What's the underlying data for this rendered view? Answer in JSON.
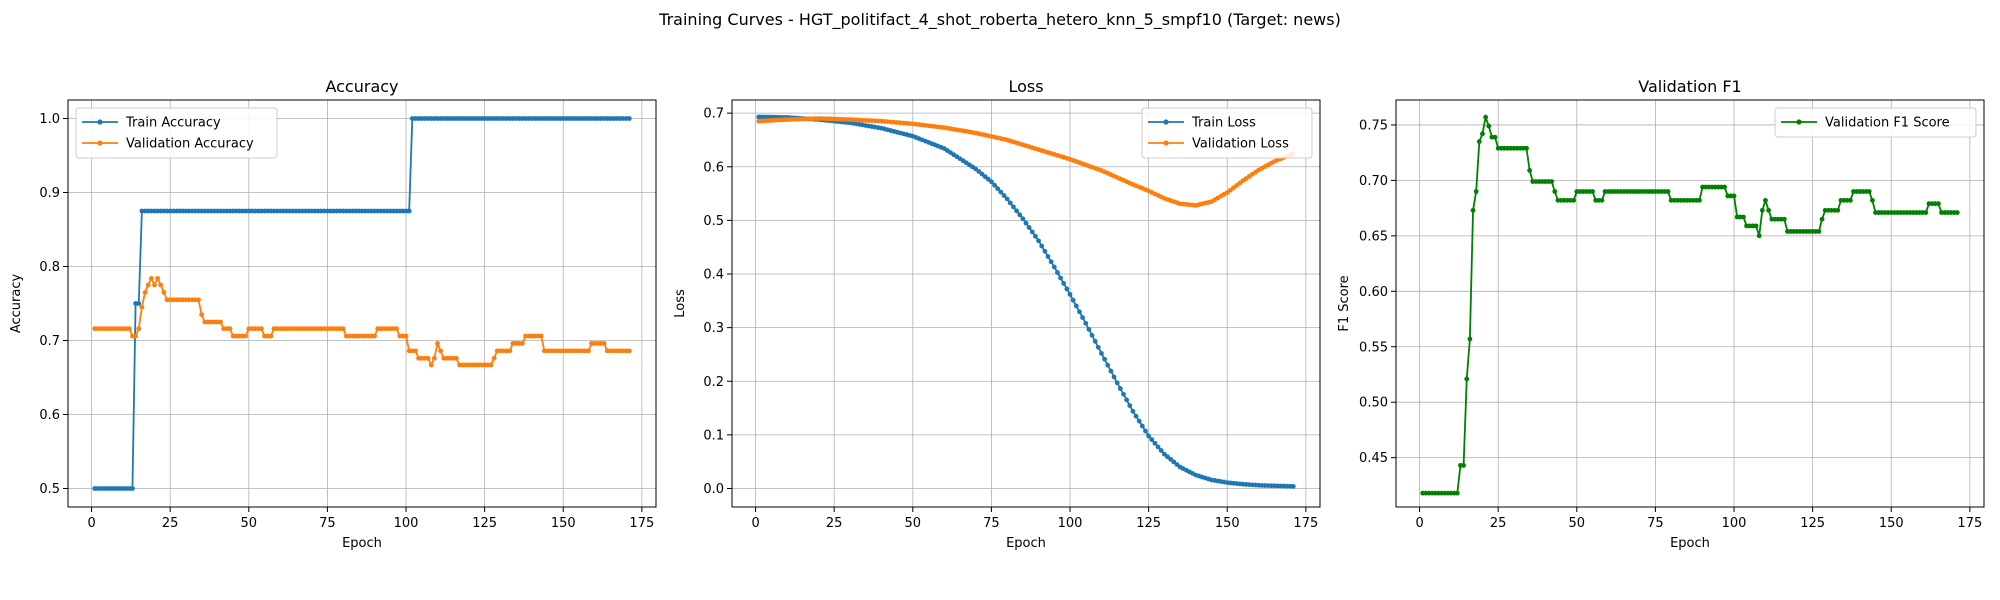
{
  "figure": {
    "title": "Training Curves - HGT_politifact_4_shot_roberta_hetero_knn_5_smpf10 (Target: news)"
  },
  "colors": {
    "blue": "#1f77b4",
    "orange": "#ff7f0e",
    "green": "#008000",
    "grid": "#b0b0b0"
  },
  "chart_data": [
    {
      "type": "line",
      "title": "Accuracy",
      "xlabel": "Epoch",
      "ylabel": "Accuracy",
      "xlim": [
        -7.5,
        179.5
      ],
      "ylim": [
        0.475,
        1.025
      ],
      "xticks": [
        0,
        25,
        50,
        75,
        100,
        125,
        150,
        175
      ],
      "yticks": [
        0.5,
        0.6,
        0.7,
        0.8,
        0.9,
        1.0
      ],
      "ytick_decimals": 1,
      "grid": true,
      "legend": "upper left",
      "series": [
        {
          "name": "Train Accuracy",
          "color": "#1f77b4",
          "points": [
            [
              1,
              0.5
            ],
            [
              13,
              0.5
            ],
            [
              14,
              0.75
            ],
            [
              15,
              0.75
            ],
            [
              16,
              0.875
            ],
            [
              101,
              0.875
            ],
            [
              102,
              1.0
            ],
            [
              171,
              1.0
            ]
          ]
        },
        {
          "name": "Validation Accuracy",
          "color": "#ff7f0e",
          "points": [
            [
              1,
              0.716
            ],
            [
              12,
              0.716
            ],
            [
              13,
              0.706
            ],
            [
              14,
              0.706
            ],
            [
              15,
              0.716
            ],
            [
              16,
              0.745
            ],
            [
              17,
              0.765
            ],
            [
              18,
              0.775
            ],
            [
              19,
              0.784
            ],
            [
              20,
              0.775
            ],
            [
              21,
              0.784
            ],
            [
              22,
              0.775
            ],
            [
              23,
              0.765
            ],
            [
              24,
              0.755
            ],
            [
              34,
              0.755
            ],
            [
              35,
              0.735
            ],
            [
              36,
              0.725
            ],
            [
              41,
              0.725
            ],
            [
              42,
              0.716
            ],
            [
              44,
              0.716
            ],
            [
              45,
              0.706
            ],
            [
              49,
              0.706
            ],
            [
              50,
              0.716
            ],
            [
              54,
              0.716
            ],
            [
              55,
              0.706
            ],
            [
              57,
              0.706
            ],
            [
              58,
              0.716
            ],
            [
              80,
              0.716
            ],
            [
              81,
              0.706
            ],
            [
              90,
              0.706
            ],
            [
              91,
              0.716
            ],
            [
              97,
              0.716
            ],
            [
              98,
              0.706
            ],
            [
              100,
              0.706
            ],
            [
              101,
              0.686
            ],
            [
              103,
              0.686
            ],
            [
              104,
              0.676
            ],
            [
              107,
              0.676
            ],
            [
              108,
              0.667
            ],
            [
              109,
              0.676
            ],
            [
              110,
              0.696
            ],
            [
              111,
              0.686
            ],
            [
              112,
              0.676
            ],
            [
              116,
              0.676
            ],
            [
              117,
              0.667
            ],
            [
              127,
              0.667
            ],
            [
              128,
              0.676
            ],
            [
              129,
              0.686
            ],
            [
              133,
              0.686
            ],
            [
              134,
              0.696
            ],
            [
              137,
              0.696
            ],
            [
              138,
              0.706
            ],
            [
              143,
              0.706
            ],
            [
              144,
              0.686
            ],
            [
              158,
              0.686
            ],
            [
              159,
              0.696
            ],
            [
              163,
              0.696
            ],
            [
              164,
              0.686
            ],
            [
              171,
              0.686
            ]
          ]
        }
      ]
    },
    {
      "type": "line",
      "title": "Loss",
      "xlabel": "Epoch",
      "ylabel": "Loss",
      "xlim": [
        -7.5,
        179.5
      ],
      "ylim": [
        -0.0345,
        0.7245
      ],
      "xticks": [
        0,
        25,
        50,
        75,
        100,
        125,
        150,
        175
      ],
      "yticks": [
        0.0,
        0.1,
        0.2,
        0.3,
        0.4,
        0.5,
        0.6,
        0.7
      ],
      "ytick_decimals": 1,
      "grid": true,
      "legend": "upper right",
      "series": [
        {
          "name": "Train Loss",
          "color": "#1f77b4",
          "points": [
            [
              1,
              0.693
            ],
            [
              10,
              0.692
            ],
            [
              20,
              0.688
            ],
            [
              30,
              0.682
            ],
            [
              40,
              0.672
            ],
            [
              50,
              0.657
            ],
            [
              60,
              0.634
            ],
            [
              70,
              0.596
            ],
            [
              75,
              0.572
            ],
            [
              80,
              0.54
            ],
            [
              85,
              0.503
            ],
            [
              90,
              0.462
            ],
            [
              95,
              0.413
            ],
            [
              100,
              0.362
            ],
            [
              105,
              0.308
            ],
            [
              110,
              0.252
            ],
            [
              115,
              0.197
            ],
            [
              120,
              0.144
            ],
            [
              125,
              0.098
            ],
            [
              130,
              0.064
            ],
            [
              135,
              0.04
            ],
            [
              140,
              0.025
            ],
            [
              145,
              0.016
            ],
            [
              150,
              0.011
            ],
            [
              155,
              0.008
            ],
            [
              160,
              0.006
            ],
            [
              165,
              0.005
            ],
            [
              171,
              0.004
            ]
          ]
        },
        {
          "name": "Validation Loss",
          "color": "#ff7f0e",
          "points": [
            [
              1,
              0.685
            ],
            [
              10,
              0.688
            ],
            [
              20,
              0.69
            ],
            [
              30,
              0.688
            ],
            [
              40,
              0.685
            ],
            [
              50,
              0.68
            ],
            [
              60,
              0.673
            ],
            [
              70,
              0.663
            ],
            [
              80,
              0.65
            ],
            [
              90,
              0.632
            ],
            [
              100,
              0.614
            ],
            [
              110,
              0.593
            ],
            [
              120,
              0.567
            ],
            [
              125,
              0.555
            ],
            [
              130,
              0.541
            ],
            [
              135,
              0.531
            ],
            [
              140,
              0.528
            ],
            [
              145,
              0.535
            ],
            [
              150,
              0.552
            ],
            [
              155,
              0.574
            ],
            [
              160,
              0.594
            ],
            [
              165,
              0.61
            ],
            [
              170,
              0.622
            ],
            [
              171,
              0.624
            ]
          ]
        }
      ]
    },
    {
      "type": "line",
      "title": "Validation F1",
      "xlabel": "Epoch",
      "ylabel": "F1 Score",
      "xlim": [
        -7.5,
        179.5
      ],
      "ylim": [
        0.4055,
        0.7725
      ],
      "xticks": [
        0,
        25,
        50,
        75,
        100,
        125,
        150,
        175
      ],
      "yticks": [
        0.45,
        0.5,
        0.55,
        0.6,
        0.65,
        0.7,
        0.75
      ],
      "ytick_decimals": 2,
      "grid": true,
      "legend": "upper right",
      "series": [
        {
          "name": "Validation F1 Score",
          "color": "#008000",
          "points": [
            [
              1,
              0.418
            ],
            [
              12,
              0.418
            ],
            [
              13,
              0.443
            ],
            [
              14,
              0.443
            ],
            [
              15,
              0.521
            ],
            [
              16,
              0.557
            ],
            [
              17,
              0.673
            ],
            [
              18,
              0.69
            ],
            [
              19,
              0.735
            ],
            [
              20,
              0.742
            ],
            [
              21,
              0.757
            ],
            [
              22,
              0.749
            ],
            [
              23,
              0.739
            ],
            [
              24,
              0.739
            ],
            [
              25,
              0.729
            ],
            [
              34,
              0.729
            ],
            [
              35,
              0.709
            ],
            [
              36,
              0.699
            ],
            [
              42,
              0.699
            ],
            [
              43,
              0.69
            ],
            [
              44,
              0.682
            ],
            [
              49,
              0.682
            ],
            [
              50,
              0.69
            ],
            [
              55,
              0.69
            ],
            [
              56,
              0.682
            ],
            [
              58,
              0.682
            ],
            [
              59,
              0.69
            ],
            [
              79,
              0.69
            ],
            [
              80,
              0.682
            ],
            [
              89,
              0.682
            ],
            [
              90,
              0.694
            ],
            [
              97,
              0.694
            ],
            [
              98,
              0.686
            ],
            [
              100,
              0.686
            ],
            [
              101,
              0.667
            ],
            [
              103,
              0.667
            ],
            [
              104,
              0.659
            ],
            [
              107,
              0.659
            ],
            [
              108,
              0.65
            ],
            [
              109,
              0.673
            ],
            [
              110,
              0.682
            ],
            [
              111,
              0.673
            ],
            [
              112,
              0.665
            ],
            [
              116,
              0.665
            ],
            [
              117,
              0.654
            ],
            [
              127,
              0.654
            ],
            [
              128,
              0.665
            ],
            [
              129,
              0.673
            ],
            [
              133,
              0.673
            ],
            [
              134,
              0.682
            ],
            [
              137,
              0.682
            ],
            [
              138,
              0.69
            ],
            [
              143,
              0.69
            ],
            [
              144,
              0.682
            ],
            [
              145,
              0.671
            ],
            [
              161,
              0.671
            ],
            [
              162,
              0.679
            ],
            [
              165,
              0.679
            ],
            [
              166,
              0.671
            ],
            [
              171,
              0.671
            ]
          ]
        }
      ]
    }
  ]
}
